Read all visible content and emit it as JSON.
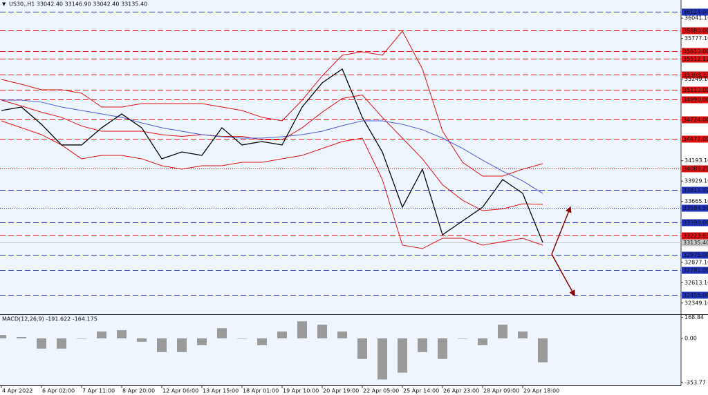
{
  "chart_data": [
    {
      "type": "line",
      "title": "US30.,H1  33042.40 33146.90 33042.40 33135.40",
      "categories": [
        "4 Apr 2022",
        null,
        "6 Apr 02:00",
        null,
        "7 Apr 11:00",
        null,
        "8 Apr 20:00",
        null,
        "12 Apr 06:00",
        null,
        "13 Apr 15:00",
        null,
        "18 Apr 01:00",
        null,
        "19 Apr 10:00",
        null,
        "20 Apr 19:00",
        null,
        "22 Apr 05:00",
        null,
        "25 Apr 14:00",
        null,
        "26 Apr 23:00",
        null,
        "28 Apr 09:00",
        null,
        "29 Apr 18:00",
        null
      ],
      "series": [
        {
          "color": "#e01010",
          "values": [
            35247,
            35184,
            35113,
            35113,
            35068,
            34889,
            34889,
            34934,
            34934,
            34934,
            34934,
            34889,
            34844,
            34755,
            34710,
            34978,
            35292,
            35560,
            35605,
            35560,
            35873,
            35381,
            34576,
            34173,
            33994,
            33994,
            34083,
            34155
          ]
        },
        {
          "color": "#e01010",
          "values": [
            34978,
            34902,
            34822,
            34755,
            34643,
            34575,
            34575,
            34576,
            34531,
            34508,
            34531,
            34508,
            34508,
            34464,
            34464,
            34620,
            34822,
            35000,
            35045,
            34754,
            34486,
            34217,
            33882,
            33680,
            33546,
            33569,
            33635,
            33627
          ]
        },
        {
          "color": "#e01010",
          "values": [
            34710,
            34620,
            34531,
            34397,
            34218,
            34262,
            34262,
            34218,
            34128,
            34083,
            34128,
            34128,
            34173,
            34173,
            34218,
            34262,
            34352,
            34441,
            34486,
            33949,
            33099,
            33054,
            33188,
            33188,
            33099,
            33144,
            33188,
            33099
          ]
        },
        {
          "color": "#4a58d8",
          "values": [
            34978,
            34978,
            34952,
            34889,
            34844,
            34799,
            34755,
            34683,
            34620,
            34576,
            34531,
            34504,
            34486,
            34486,
            34504,
            34531,
            34576,
            34647,
            34710,
            34710,
            34665,
            34594,
            34486,
            34352,
            34200,
            34057,
            33931,
            33770
          ]
        },
        {
          "color": "#000000",
          "values": [
            34844,
            34889,
            34665,
            34397,
            34397,
            34620,
            34799,
            34620,
            34218,
            34307,
            34262,
            34620,
            34397,
            34441,
            34397,
            34889,
            35202,
            35381,
            34755,
            34307,
            33591,
            34083,
            33233,
            33412,
            33591,
            33949,
            33770,
            33135
          ]
        }
      ],
      "ylim": [
        32204,
        36258
      ],
      "yticks": [
        {
          "value": 36041.1,
          "label": "36041.10"
        },
        {
          "value": 35777.1,
          "label": "35777.10"
        },
        {
          "value": 35249.1,
          "label": "35249.10"
        },
        {
          "value": 34193.1,
          "label": "34193.10"
        },
        {
          "value": 33929.1,
          "label": "33929.10"
        },
        {
          "value": 33665.1,
          "label": "33665.10"
        },
        {
          "value": 32877.1,
          "label": "32877.10"
        },
        {
          "value": 32613.1,
          "label": "32613.10"
        },
        {
          "value": 32349.1,
          "label": "32349.10"
        }
      ],
      "levels": [
        {
          "value": 36124.04,
          "color": "#2233bb",
          "style": "dashed"
        },
        {
          "value": 35880,
          "label": "35880.00",
          "color": "#e01010",
          "style": "dashed"
        },
        {
          "value": 35610,
          "label": "35610.00",
          "color": "#e01010",
          "style": "dashed"
        },
        {
          "value": 35512.12,
          "color": "#e01010",
          "style": "dashed"
        },
        {
          "value": 35308.23,
          "color": "#e01010",
          "style": "dashed"
        },
        {
          "value": 35110,
          "label": "35110.00",
          "color": "#e01010",
          "style": "dashed"
        },
        {
          "value": 34990,
          "label": "34990.00",
          "color": "#e01010",
          "style": "dashed"
        },
        {
          "value": 34724,
          "label": "34724.00",
          "color": "#e01010",
          "style": "dashed"
        },
        {
          "value": 34477,
          "label": "34477.00",
          "color": "#e01010",
          "style": "dashed"
        },
        {
          "value": 34088.2,
          "label": "34088.20",
          "color": "#e01010",
          "style": "dotted"
        },
        {
          "value": 33811.92,
          "color": "#2233bb",
          "style": "dashed"
        },
        {
          "value": 33584.59,
          "color": "#2233bb",
          "style": "dotted"
        },
        {
          "value": 33390,
          "label": "33390.00",
          "color": "#2233bb",
          "style": "dashed"
        },
        {
          "value": 33223.63,
          "color": "#e01010",
          "style": "dashed"
        },
        {
          "value": 33135.4,
          "label": "33135.40",
          "color": "#c8c8c8",
          "style": "solid"
        },
        {
          "value": 32975,
          "label": "32975.00",
          "color": "#2233bb",
          "style": "dashed"
        },
        {
          "value": 32781,
          "label": "32781.00",
          "color": "#2233bb",
          "style": "dashed"
        },
        {
          "value": 32455,
          "label": "32455.00",
          "color": "#2233bb",
          "style": "dashed"
        }
      ]
    },
    {
      "type": "bar",
      "title": "MACD(12,26,9) -191.622 -164.175",
      "color": "#9a9a9a",
      "values": [
        27,
        11,
        -82,
        -82,
        0,
        55,
        66,
        -27,
        -110,
        -110,
        -55,
        82,
        0,
        -55,
        55,
        137,
        110,
        55,
        -165,
        -330,
        -275,
        -110,
        -165,
        0,
        -55,
        110,
        55,
        -192
      ],
      "ylim": [
        -377,
        183
      ],
      "yticks": [
        {
          "value": 168.84,
          "label": "168.84"
        },
        {
          "value": 0,
          "label": "0.00"
        },
        {
          "value": -353.77,
          "label": "-353.77"
        }
      ]
    }
  ]
}
